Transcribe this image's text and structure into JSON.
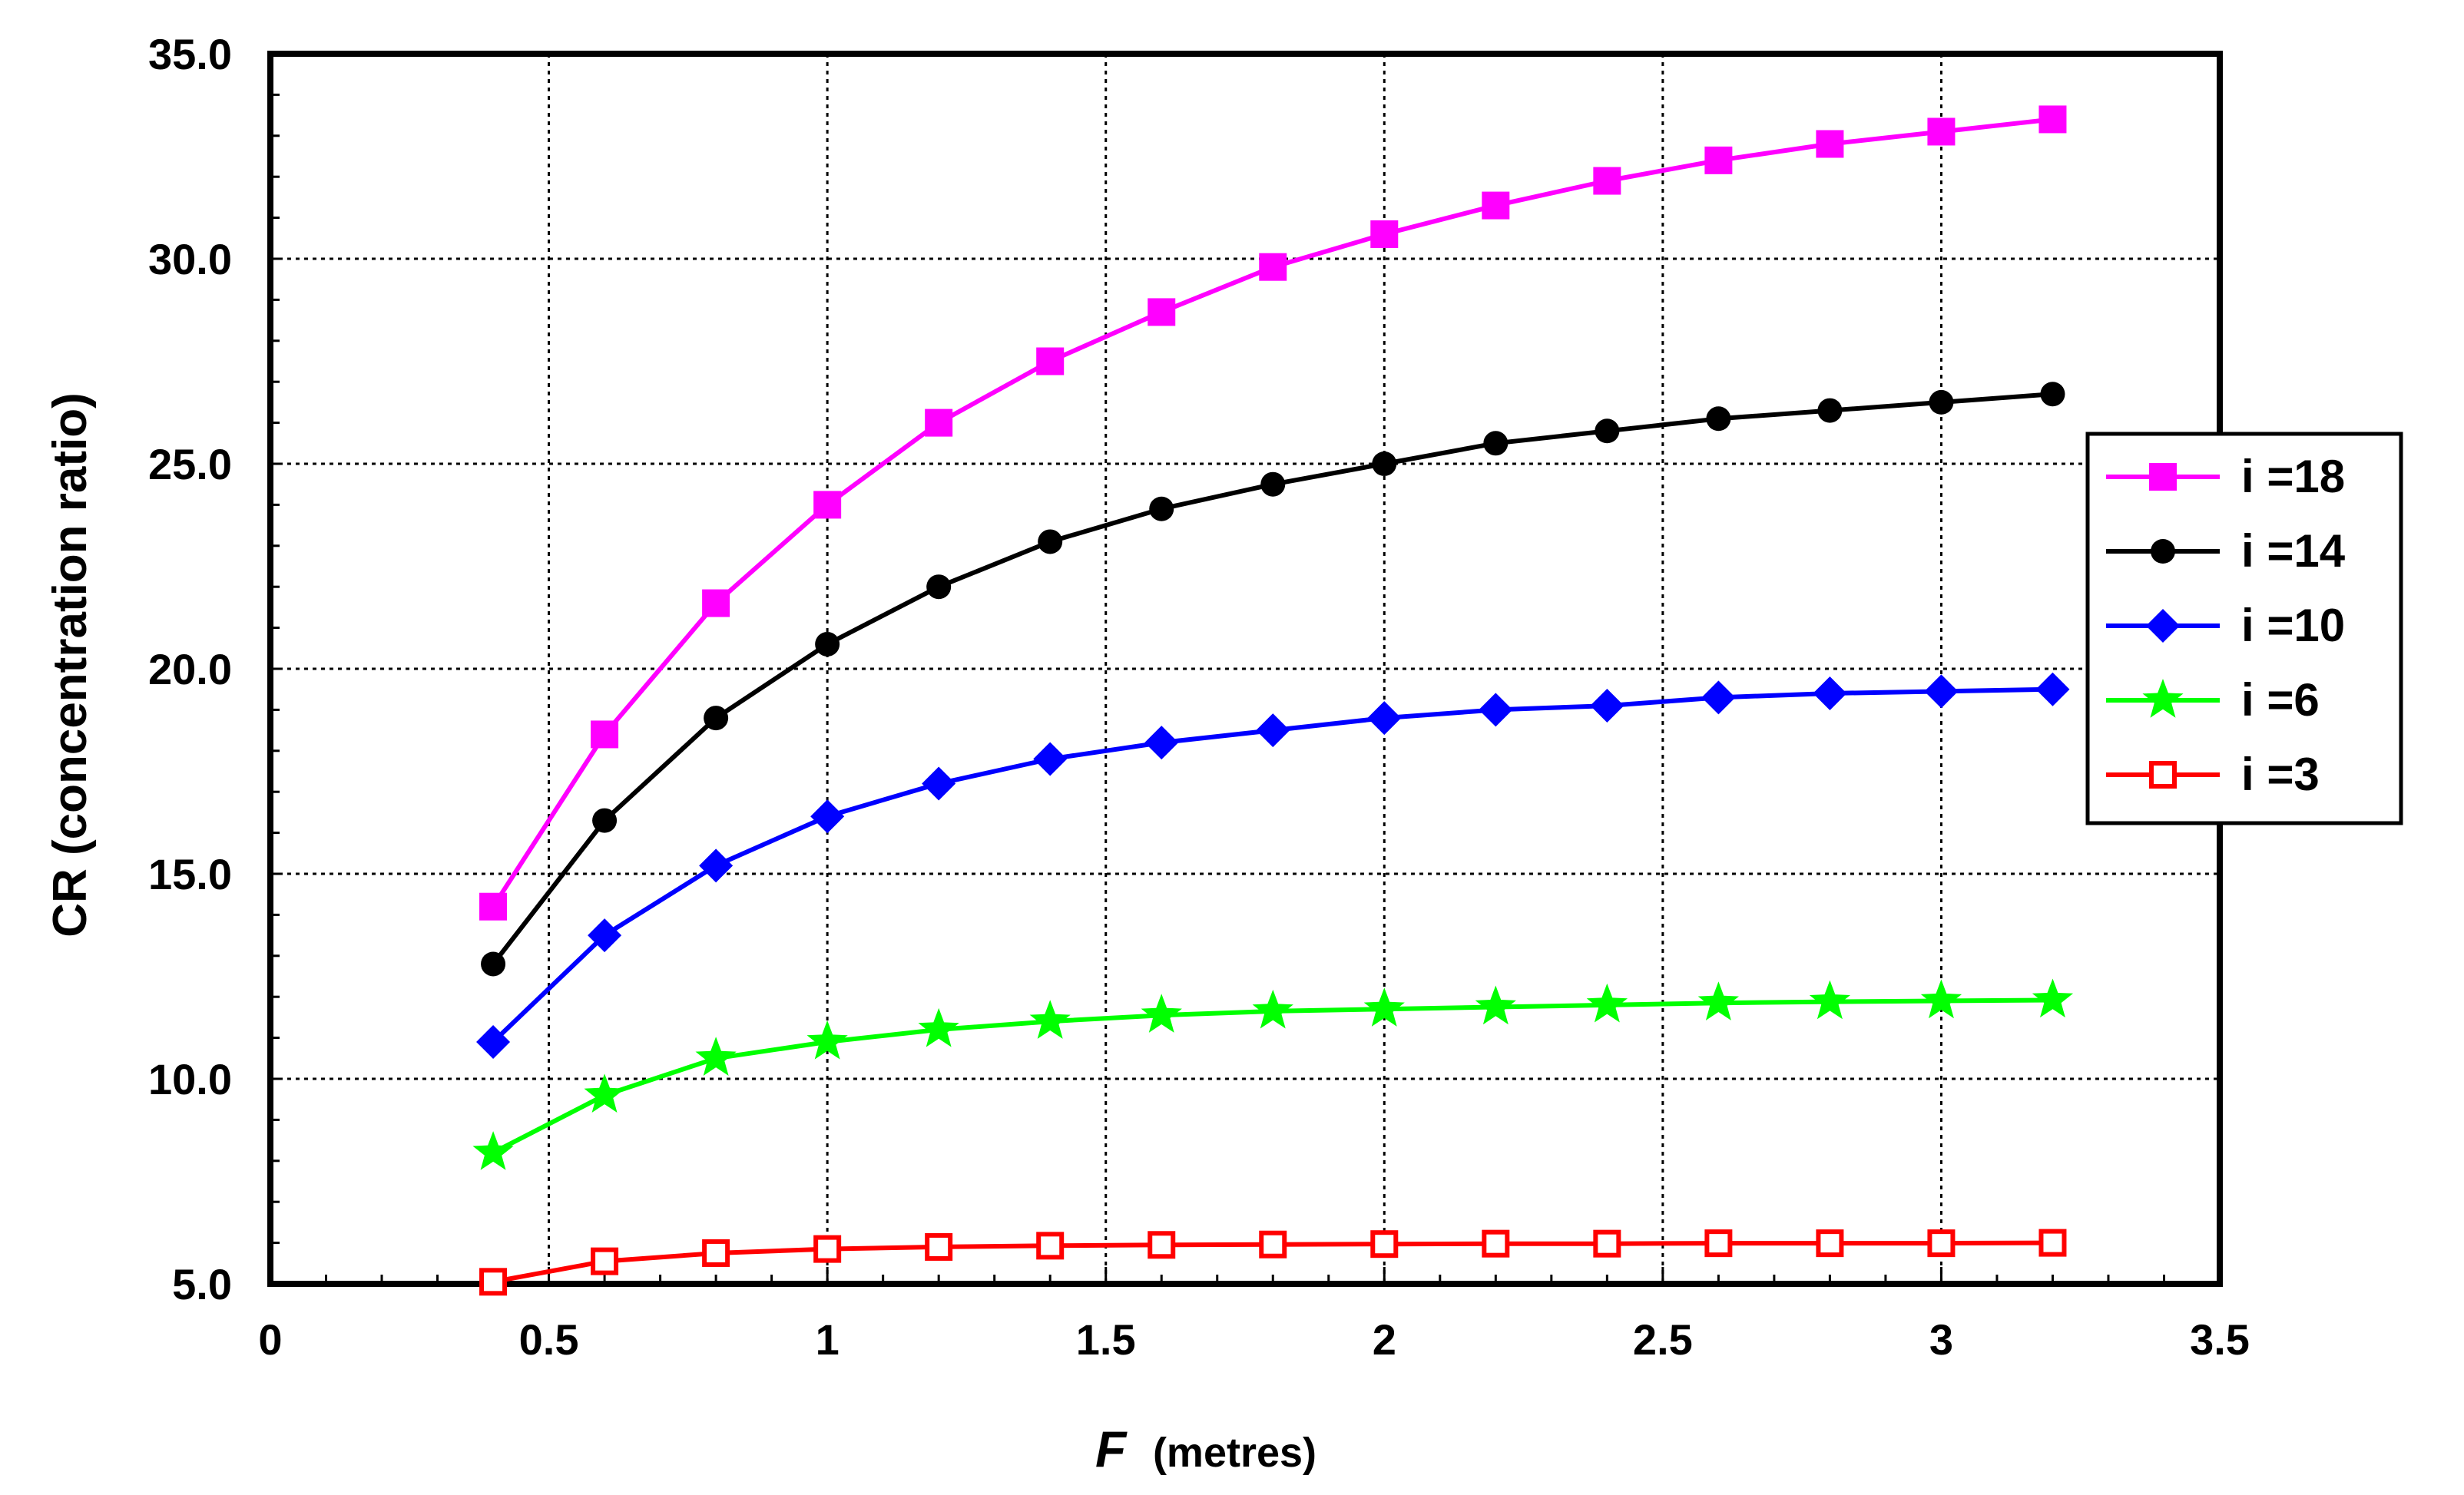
{
  "chart_data": {
    "type": "line",
    "xlabel": {
      "symbol": "F",
      "unit": "(metres)"
    },
    "ylabel": "CR (concentration ratio)",
    "xlim": [
      0,
      3.5
    ],
    "ylim": [
      5,
      35
    ],
    "xticks": [
      0,
      0.5,
      1,
      1.5,
      2,
      2.5,
      3,
      3.5
    ],
    "xtick_labels": [
      "0",
      "0.5",
      "1",
      "1.5",
      "2",
      "2.5",
      "3",
      "3.5"
    ],
    "yticks": [
      5,
      10,
      15,
      20,
      25,
      30,
      35
    ],
    "ytick_labels": [
      "5.0",
      "10.0",
      "15.0",
      "20.0",
      "25.0",
      "30.0",
      "35.0"
    ],
    "grid": true,
    "legend_position": "right",
    "x": [
      0.4,
      0.6,
      0.8,
      1.0,
      1.2,
      1.4,
      1.6,
      1.8,
      2.0,
      2.2,
      2.4,
      2.6,
      2.8,
      3.0,
      3.2
    ],
    "series": [
      {
        "name": "i =18",
        "color": "#ff00ff",
        "marker": "square-filled",
        "values": [
          14.2,
          18.4,
          21.6,
          24.0,
          26.0,
          27.5,
          28.7,
          29.8,
          30.6,
          31.3,
          31.9,
          32.4,
          32.8,
          33.1,
          33.4
        ]
      },
      {
        "name": "i =14",
        "color": "#000000",
        "marker": "circle-filled",
        "values": [
          12.8,
          16.3,
          18.8,
          20.6,
          22.0,
          23.1,
          23.9,
          24.5,
          25.0,
          25.5,
          25.8,
          26.1,
          26.3,
          26.5,
          26.7
        ]
      },
      {
        "name": "i =10",
        "color": "#0000ff",
        "marker": "diamond-filled",
        "values": [
          10.9,
          13.5,
          15.2,
          16.4,
          17.2,
          17.8,
          18.2,
          18.5,
          18.8,
          19.0,
          19.1,
          19.3,
          19.4,
          19.45,
          19.5
        ]
      },
      {
        "name": "i =6",
        "color": "#00ff00",
        "marker": "star-filled",
        "values": [
          8.2,
          9.6,
          10.5,
          10.9,
          11.2,
          11.4,
          11.55,
          11.65,
          11.7,
          11.75,
          11.8,
          11.85,
          11.88,
          11.9,
          11.92
        ]
      },
      {
        "name": "i =3",
        "color": "#ff0000",
        "marker": "square-open",
        "values": [
          5.05,
          5.55,
          5.75,
          5.85,
          5.9,
          5.93,
          5.95,
          5.96,
          5.97,
          5.98,
          5.98,
          5.99,
          5.99,
          5.99,
          6.0
        ]
      }
    ]
  }
}
